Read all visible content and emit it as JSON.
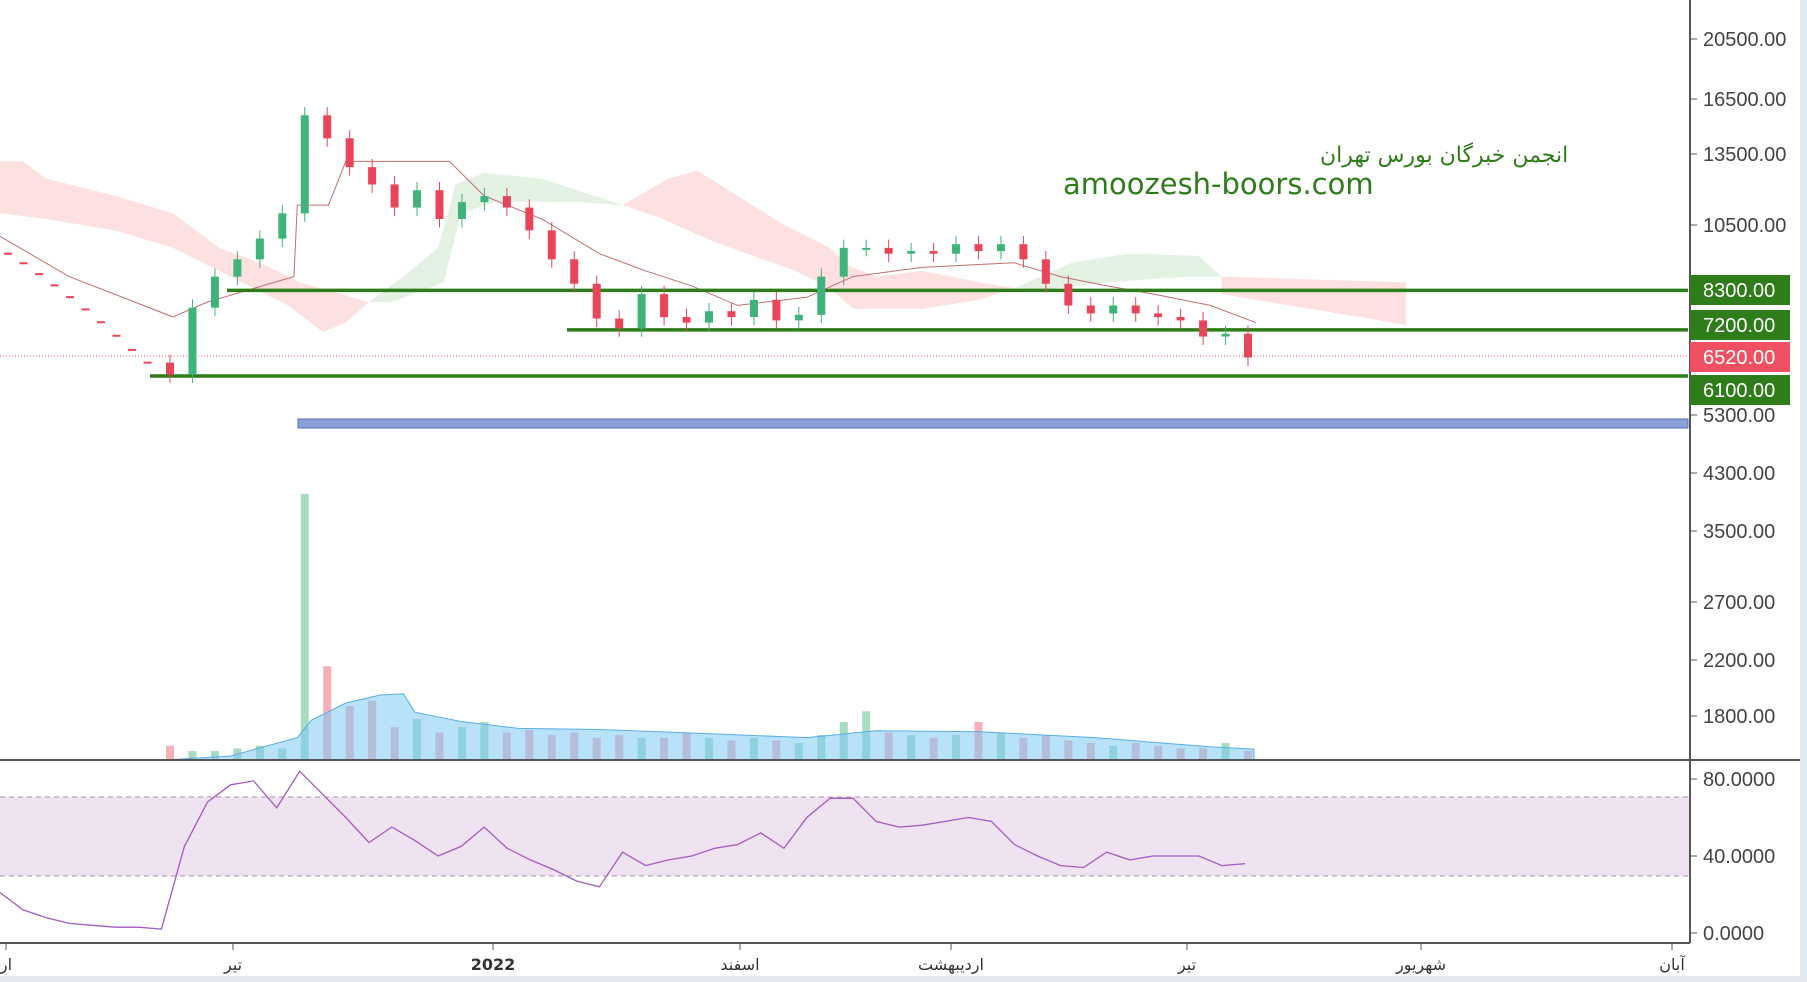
{
  "chart_data": {
    "type": "candlestick",
    "scale": "log",
    "watermark": {
      "line1": "انجمن خبرگان بورس تهران",
      "line2": "amoozesh-boors.com"
    },
    "price_axis_ticks": [
      "20500.00",
      "16500.00",
      "13500.00",
      "10500.00",
      "5300.00",
      "4300.00",
      "3500.00",
      "2700.00",
      "2200.00",
      "1800.00"
    ],
    "price_tags": [
      {
        "label": "8300.00",
        "value": 8300,
        "color": "#2e7d1a"
      },
      {
        "label": "7200.00",
        "value": 7200,
        "color": "#2e7d1a"
      },
      {
        "label": "6520.00",
        "value": 6520,
        "color": "#ef5062"
      },
      {
        "label": "6100.00",
        "value": 6100,
        "color": "#2e7d1a"
      }
    ],
    "support_resistance_lines": [
      8300,
      7200,
      6100
    ],
    "last_price": 6520,
    "rsi_axis_ticks": [
      "80.0000",
      "40.0000",
      "0.0000"
    ],
    "rsi_band": [
      30,
      70
    ],
    "x_axis_labels": [
      "ار",
      "تیر",
      "2022",
      "اسفند",
      "اردیبهشت",
      "تیر",
      "شهریور",
      "آبان"
    ],
    "pre_series_closes": [
      9470,
      9150,
      8800,
      8450,
      8100,
      7750,
      7400,
      7050,
      6700,
      6400
    ],
    "closes": [
      6130,
      7800,
      8720,
      9280,
      10000,
      10950,
      15580,
      14340,
      12930,
      12150,
      11180,
      11900,
      10730,
      11400,
      11650,
      11180,
      10300,
      9280,
      8500,
      7500,
      7240,
      8190,
      7540,
      7390,
      7700,
      7540,
      8020,
      7450,
      7600,
      8720,
      9670,
      9670,
      9470,
      9560,
      9470,
      9800,
      9560,
      9800,
      9280,
      8500,
      7860,
      7640,
      7860,
      7640,
      7540,
      7450,
      7030,
      7100,
      6520
    ],
    "volume_relative": [
      5,
      3,
      3,
      4,
      5,
      4,
      100,
      35,
      20,
      22,
      12,
      15,
      10,
      12,
      14,
      10,
      11,
      9,
      10,
      8,
      9,
      8,
      8,
      10,
      8,
      7,
      8,
      7,
      6,
      9,
      14,
      18,
      10,
      9,
      8,
      9,
      14,
      10,
      8,
      9,
      7,
      6,
      5,
      6,
      5,
      4,
      4,
      6,
      3
    ],
    "rsi": [
      21,
      12,
      8,
      5,
      4,
      3,
      3,
      2,
      45,
      68,
      77,
      79,
      65,
      84,
      72,
      60,
      47,
      55,
      48,
      40,
      45,
      55,
      44,
      38,
      33,
      27,
      24,
      42,
      35,
      38,
      40,
      44,
      46,
      52,
      44,
      60,
      70,
      70,
      58,
      55,
      56,
      58,
      60,
      58,
      46,
      40,
      35,
      34,
      42,
      38,
      40,
      40,
      40,
      35,
      36
    ],
    "colors": {
      "up": "#3fb37a",
      "down": "#e8455a",
      "rsi_line": "#a35cc0",
      "rsi_band": "#efe2f1",
      "volume_ma": "#7ec8f5",
      "zone": "#8c9fd6"
    }
  }
}
